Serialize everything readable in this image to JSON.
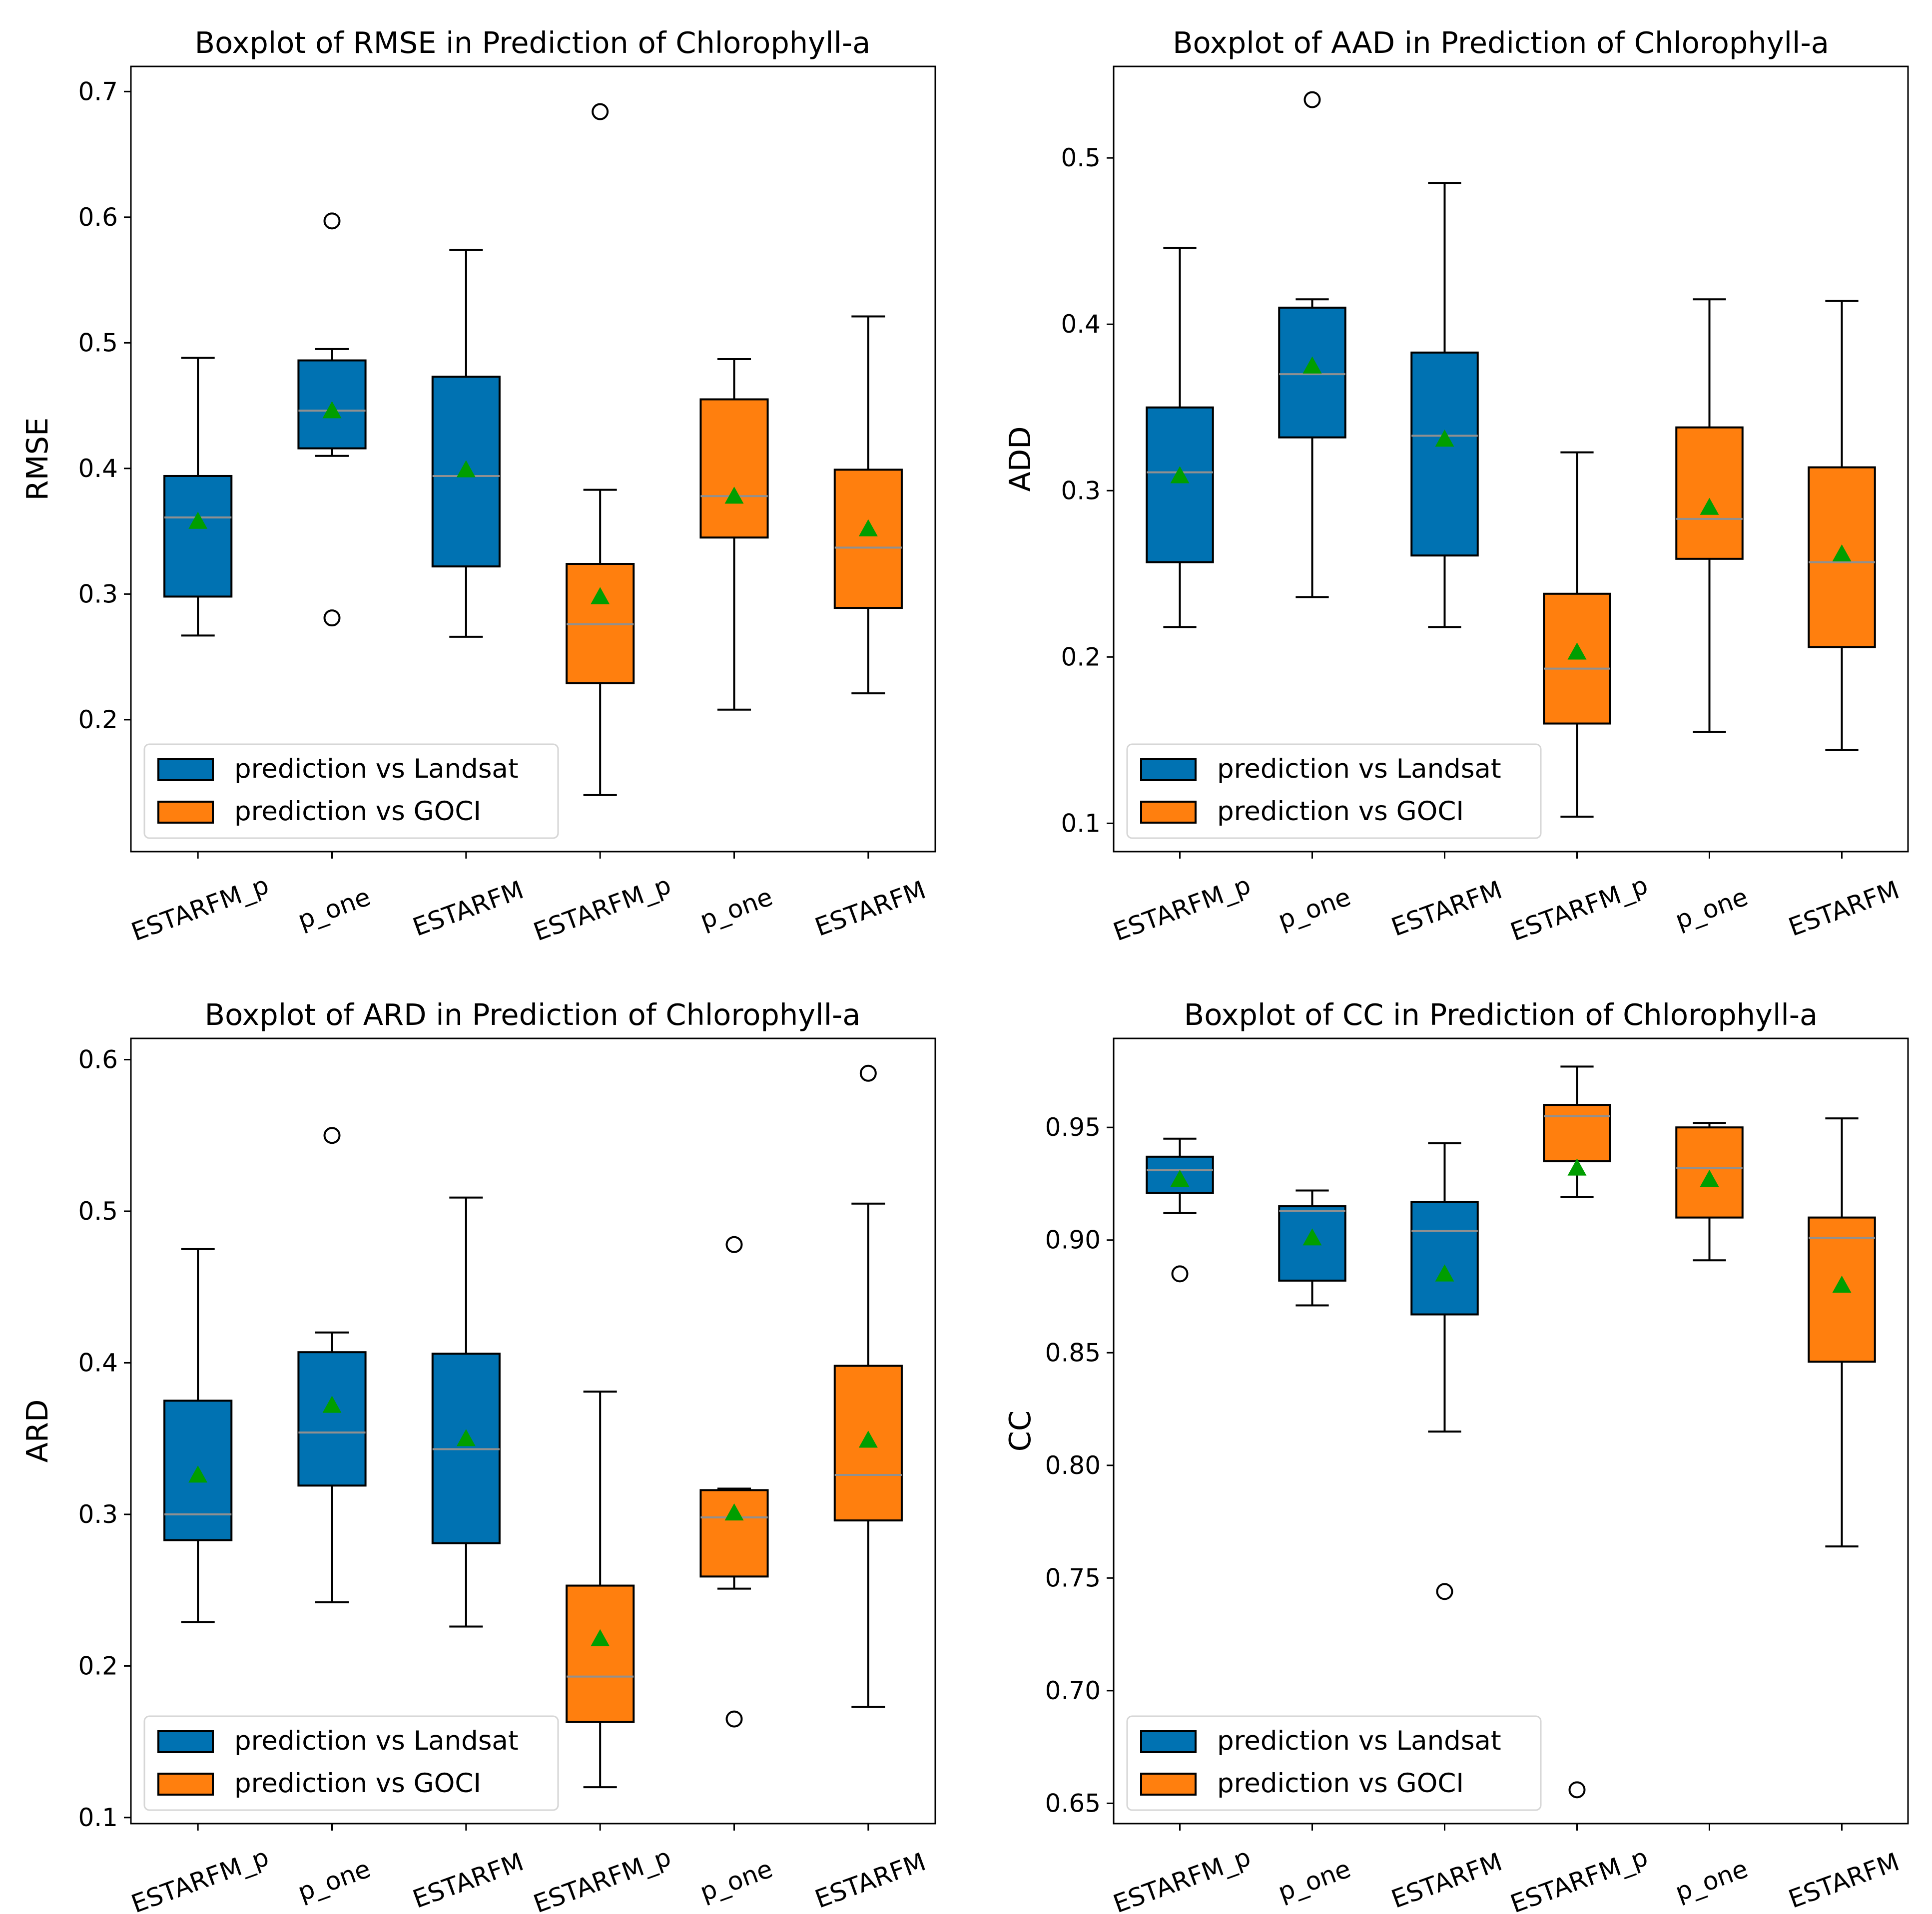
{
  "colors": {
    "landsat": "#0072b2",
    "goci": "#ff7f0e",
    "median": "#909090",
    "mean": "#009e00",
    "line": "#000000",
    "legend_border": "#d6d6d6"
  },
  "chart_data": [
    {
      "type": "boxplot",
      "title": "Boxplot of RMSE in Prediction of Chlorophyll-a",
      "xlabel": "",
      "ylabel": "RMSE",
      "ylim": [
        0.095,
        0.72
      ],
      "yticks": [
        "0.2",
        "0.3",
        "0.4",
        "0.5",
        "0.6",
        "0.7"
      ],
      "categories": [
        "ESTARFM_p",
        "p_one",
        "ESTARFM",
        "ESTARFM_p",
        "p_one",
        "ESTARFM"
      ],
      "legend": [
        "prediction vs Landsat",
        "prediction vs GOCI"
      ],
      "legend_loc": "lower-left",
      "boxes": [
        {
          "group": "landsat",
          "whislo": 0.267,
          "q1": 0.298,
          "med": 0.361,
          "q3": 0.394,
          "whishi": 0.488,
          "mean": 0.358,
          "fliers": []
        },
        {
          "group": "landsat",
          "whislo": 0.41,
          "q1": 0.416,
          "med": 0.446,
          "q3": 0.486,
          "whishi": 0.495,
          "mean": 0.446,
          "fliers": [
            0.597,
            0.281
          ]
        },
        {
          "group": "landsat",
          "whislo": 0.266,
          "q1": 0.322,
          "med": 0.394,
          "q3": 0.473,
          "whishi": 0.574,
          "mean": 0.399,
          "fliers": []
        },
        {
          "group": "goci",
          "whislo": 0.14,
          "q1": 0.229,
          "med": 0.276,
          "q3": 0.324,
          "whishi": 0.383,
          "mean": 0.298,
          "fliers": [
            0.684
          ]
        },
        {
          "group": "goci",
          "whislo": 0.208,
          "q1": 0.345,
          "med": 0.378,
          "q3": 0.455,
          "whishi": 0.487,
          "mean": 0.378,
          "fliers": []
        },
        {
          "group": "goci",
          "whislo": 0.221,
          "q1": 0.289,
          "med": 0.337,
          "q3": 0.399,
          "whishi": 0.521,
          "mean": 0.352,
          "fliers": []
        }
      ]
    },
    {
      "type": "boxplot",
      "title": "Boxplot of AAD in Prediction of Chlorophyll-a",
      "xlabel": "",
      "ylabel": "ADD",
      "ylim": [
        0.083,
        0.555
      ],
      "yticks": [
        "0.1",
        "0.2",
        "0.3",
        "0.4",
        "0.5"
      ],
      "categories": [
        "ESTARFM_p",
        "p_one",
        "ESTARFM",
        "ESTARFM_p",
        "p_one",
        "ESTARFM"
      ],
      "legend": [
        "prediction vs Landsat",
        "prediction vs GOCI"
      ],
      "legend_loc": "lower-left",
      "boxes": [
        {
          "group": "landsat",
          "whislo": 0.218,
          "q1": 0.257,
          "med": 0.311,
          "q3": 0.35,
          "whishi": 0.446,
          "mean": 0.309,
          "fliers": []
        },
        {
          "group": "landsat",
          "whislo": 0.236,
          "q1": 0.332,
          "med": 0.37,
          "q3": 0.41,
          "whishi": 0.415,
          "mean": 0.375,
          "fliers": [
            0.535
          ]
        },
        {
          "group": "landsat",
          "whislo": 0.218,
          "q1": 0.261,
          "med": 0.333,
          "q3": 0.383,
          "whishi": 0.485,
          "mean": 0.331,
          "fliers": []
        },
        {
          "group": "goci",
          "whislo": 0.104,
          "q1": 0.16,
          "med": 0.193,
          "q3": 0.238,
          "whishi": 0.323,
          "mean": 0.203,
          "fliers": []
        },
        {
          "group": "goci",
          "whislo": 0.155,
          "q1": 0.259,
          "med": 0.283,
          "q3": 0.338,
          "whishi": 0.415,
          "mean": 0.29,
          "fliers": []
        },
        {
          "group": "goci",
          "whislo": 0.144,
          "q1": 0.206,
          "med": 0.257,
          "q3": 0.314,
          "whishi": 0.414,
          "mean": 0.262,
          "fliers": []
        }
      ]
    },
    {
      "type": "boxplot",
      "title": "Boxplot of ARD in Prediction of Chlorophyll-a",
      "xlabel": "",
      "ylabel": "ARD",
      "ylim": [
        0.096,
        0.614
      ],
      "yticks": [
        "0.1",
        "0.2",
        "0.3",
        "0.4",
        "0.5",
        "0.6"
      ],
      "categories": [
        "ESTARFM_p",
        "p_one",
        "ESTARFM",
        "ESTARFM_p",
        "p_one",
        "ESTARFM"
      ],
      "legend": [
        "prediction vs Landsat",
        "prediction vs GOCI"
      ],
      "legend_loc": "lower-left",
      "boxes": [
        {
          "group": "landsat",
          "whislo": 0.229,
          "q1": 0.283,
          "med": 0.3,
          "q3": 0.375,
          "whishi": 0.475,
          "mean": 0.326,
          "fliers": []
        },
        {
          "group": "landsat",
          "whislo": 0.242,
          "q1": 0.319,
          "med": 0.354,
          "q3": 0.407,
          "whishi": 0.42,
          "mean": 0.372,
          "fliers": [
            0.55
          ]
        },
        {
          "group": "landsat",
          "whislo": 0.226,
          "q1": 0.281,
          "med": 0.343,
          "q3": 0.406,
          "whishi": 0.509,
          "mean": 0.35,
          "fliers": []
        },
        {
          "group": "goci",
          "whislo": 0.12,
          "q1": 0.163,
          "med": 0.193,
          "q3": 0.253,
          "whishi": 0.381,
          "mean": 0.218,
          "fliers": []
        },
        {
          "group": "goci",
          "whislo": 0.251,
          "q1": 0.259,
          "med": 0.298,
          "q3": 0.316,
          "whishi": 0.317,
          "mean": 0.301,
          "fliers": [
            0.478,
            0.165
          ]
        },
        {
          "group": "goci",
          "whislo": 0.173,
          "q1": 0.296,
          "med": 0.326,
          "q3": 0.398,
          "whishi": 0.505,
          "mean": 0.349,
          "fliers": [
            0.591
          ]
        }
      ]
    },
    {
      "type": "boxplot",
      "title": "Boxplot of CC in Prediction of Chlorophyll-a",
      "xlabel": "",
      "ylabel": "CC",
      "ylim": [
        0.641,
        0.9895
      ],
      "yticks": [
        "0.65",
        "0.70",
        "0.75",
        "0.80",
        "0.85",
        "0.90",
        "0.95"
      ],
      "categories": [
        "ESTARFM_p",
        "p_one",
        "ESTARFM",
        "ESTARFM_p",
        "p_one",
        "ESTARFM"
      ],
      "legend": [
        "prediction vs Landsat",
        "prediction vs GOCI"
      ],
      "legend_loc": "lower-left",
      "boxes": [
        {
          "group": "landsat",
          "whislo": 0.912,
          "q1": 0.921,
          "med": 0.931,
          "q3": 0.937,
          "whishi": 0.945,
          "mean": 0.927,
          "fliers": [
            0.885
          ]
        },
        {
          "group": "landsat",
          "whislo": 0.871,
          "q1": 0.882,
          "med": 0.913,
          "q3": 0.915,
          "whishi": 0.922,
          "mean": 0.901,
          "fliers": []
        },
        {
          "group": "landsat",
          "whislo": 0.815,
          "q1": 0.867,
          "med": 0.904,
          "q3": 0.917,
          "whishi": 0.943,
          "mean": 0.885,
          "fliers": [
            0.744
          ]
        },
        {
          "group": "goci",
          "whislo": 0.919,
          "q1": 0.935,
          "med": 0.955,
          "q3": 0.96,
          "whishi": 0.977,
          "mean": 0.932,
          "fliers": [
            0.656
          ]
        },
        {
          "group": "goci",
          "whislo": 0.891,
          "q1": 0.91,
          "med": 0.932,
          "q3": 0.95,
          "whishi": 0.952,
          "mean": 0.927,
          "fliers": []
        },
        {
          "group": "goci",
          "whislo": 0.764,
          "q1": 0.846,
          "med": 0.901,
          "q3": 0.91,
          "whishi": 0.954,
          "mean": 0.88,
          "fliers": []
        }
      ]
    }
  ]
}
